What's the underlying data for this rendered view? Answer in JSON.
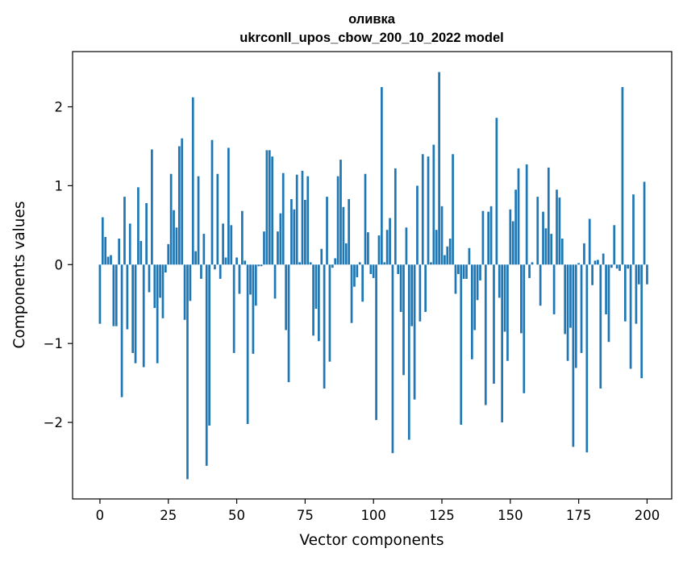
{
  "chart_data": {
    "type": "bar",
    "title_line1": "оливка",
    "title_line2": "ukrconll_upos_cbow_200_10_2022 model",
    "xlabel": "Vector components",
    "ylabel": "Components values",
    "xlim": [
      -10,
      209
    ],
    "ylim": [
      -2.97,
      2.7
    ],
    "x_ticks": [
      0,
      25,
      50,
      75,
      100,
      125,
      150,
      175,
      200
    ],
    "x_tick_labels": [
      "0",
      "25",
      "50",
      "75",
      "100",
      "125",
      "150",
      "175",
      "200"
    ],
    "y_ticks": [
      -2,
      -1,
      0,
      1,
      2
    ],
    "y_tick_labels": [
      "−2",
      "−1",
      "0",
      "1",
      "2"
    ],
    "bar_color": "#1f77b4",
    "values": [
      -0.75,
      0.6,
      0.35,
      0.1,
      0.12,
      -0.78,
      -0.78,
      0.33,
      -1.68,
      0.86,
      -0.82,
      0.52,
      -1.12,
      -1.25,
      0.98,
      0.3,
      -1.3,
      0.78,
      -0.35,
      1.46,
      -0.55,
      -1.25,
      -0.42,
      -0.68,
      -0.1,
      0.26,
      1.15,
      0.69,
      0.47,
      1.5,
      1.6,
      -0.7,
      -2.72,
      -0.46,
      2.12,
      0.17,
      1.12,
      -0.18,
      0.39,
      -2.55,
      -2.04,
      1.58,
      -0.06,
      1.15,
      -0.18,
      0.52,
      0.09,
      1.48,
      0.5,
      -1.12,
      0.09,
      -0.37,
      0.68,
      0.05,
      -2.02,
      -0.38,
      -1.13,
      -0.52,
      -0.02,
      -0.02,
      0.42,
      1.45,
      1.45,
      1.37,
      -0.43,
      0.42,
      0.65,
      1.16,
      -0.83,
      -1.49,
      0.83,
      0.7,
      1.14,
      0.03,
      1.19,
      0.82,
      1.12,
      0.03,
      -0.9,
      -0.56,
      -0.97,
      0.2,
      -1.57,
      0.86,
      -1.23,
      -0.04,
      0.08,
      1.12,
      1.33,
      0.73,
      0.27,
      0.83,
      -0.74,
      -0.28,
      -0.16,
      0.03,
      -0.47,
      1.15,
      0.41,
      -0.12,
      -0.17,
      -1.97,
      0.37,
      2.25,
      0.03,
      0.44,
      0.59,
      -2.39,
      1.22,
      -0.12,
      -0.6,
      -1.4,
      0.47,
      -2.22,
      -0.78,
      -1.71,
      1.0,
      -0.72,
      1.4,
      -0.6,
      1.37,
      0.03,
      1.52,
      0.44,
      2.44,
      0.74,
      0.12,
      0.23,
      0.33,
      1.4,
      -0.37,
      -0.12,
      -2.03,
      -0.18,
      -0.18,
      0.21,
      -1.2,
      -0.83,
      -0.45,
      -0.2,
      0.68,
      -1.78,
      0.67,
      0.74,
      -1.51,
      1.86,
      -0.42,
      -2.0,
      -0.85,
      -1.22,
      0.7,
      0.55,
      0.95,
      1.22,
      -0.87,
      -1.63,
      1.27,
      -0.17,
      0.03,
      0.0,
      0.86,
      -0.52,
      0.67,
      0.46,
      1.23,
      0.39,
      -0.63,
      0.95,
      0.85,
      0.33,
      -0.88,
      -1.22,
      -0.8,
      -2.31,
      -1.31,
      0.02,
      -1.12,
      0.27,
      -2.38,
      0.58,
      -0.26,
      0.05,
      0.06,
      -1.57,
      0.14,
      -0.63,
      -0.98,
      -0.04,
      0.5,
      -0.05,
      -0.08,
      2.25,
      -0.72,
      -0.05,
      -1.32,
      0.89,
      -0.75,
      -0.25,
      -1.44,
      1.05,
      -0.25
    ]
  }
}
